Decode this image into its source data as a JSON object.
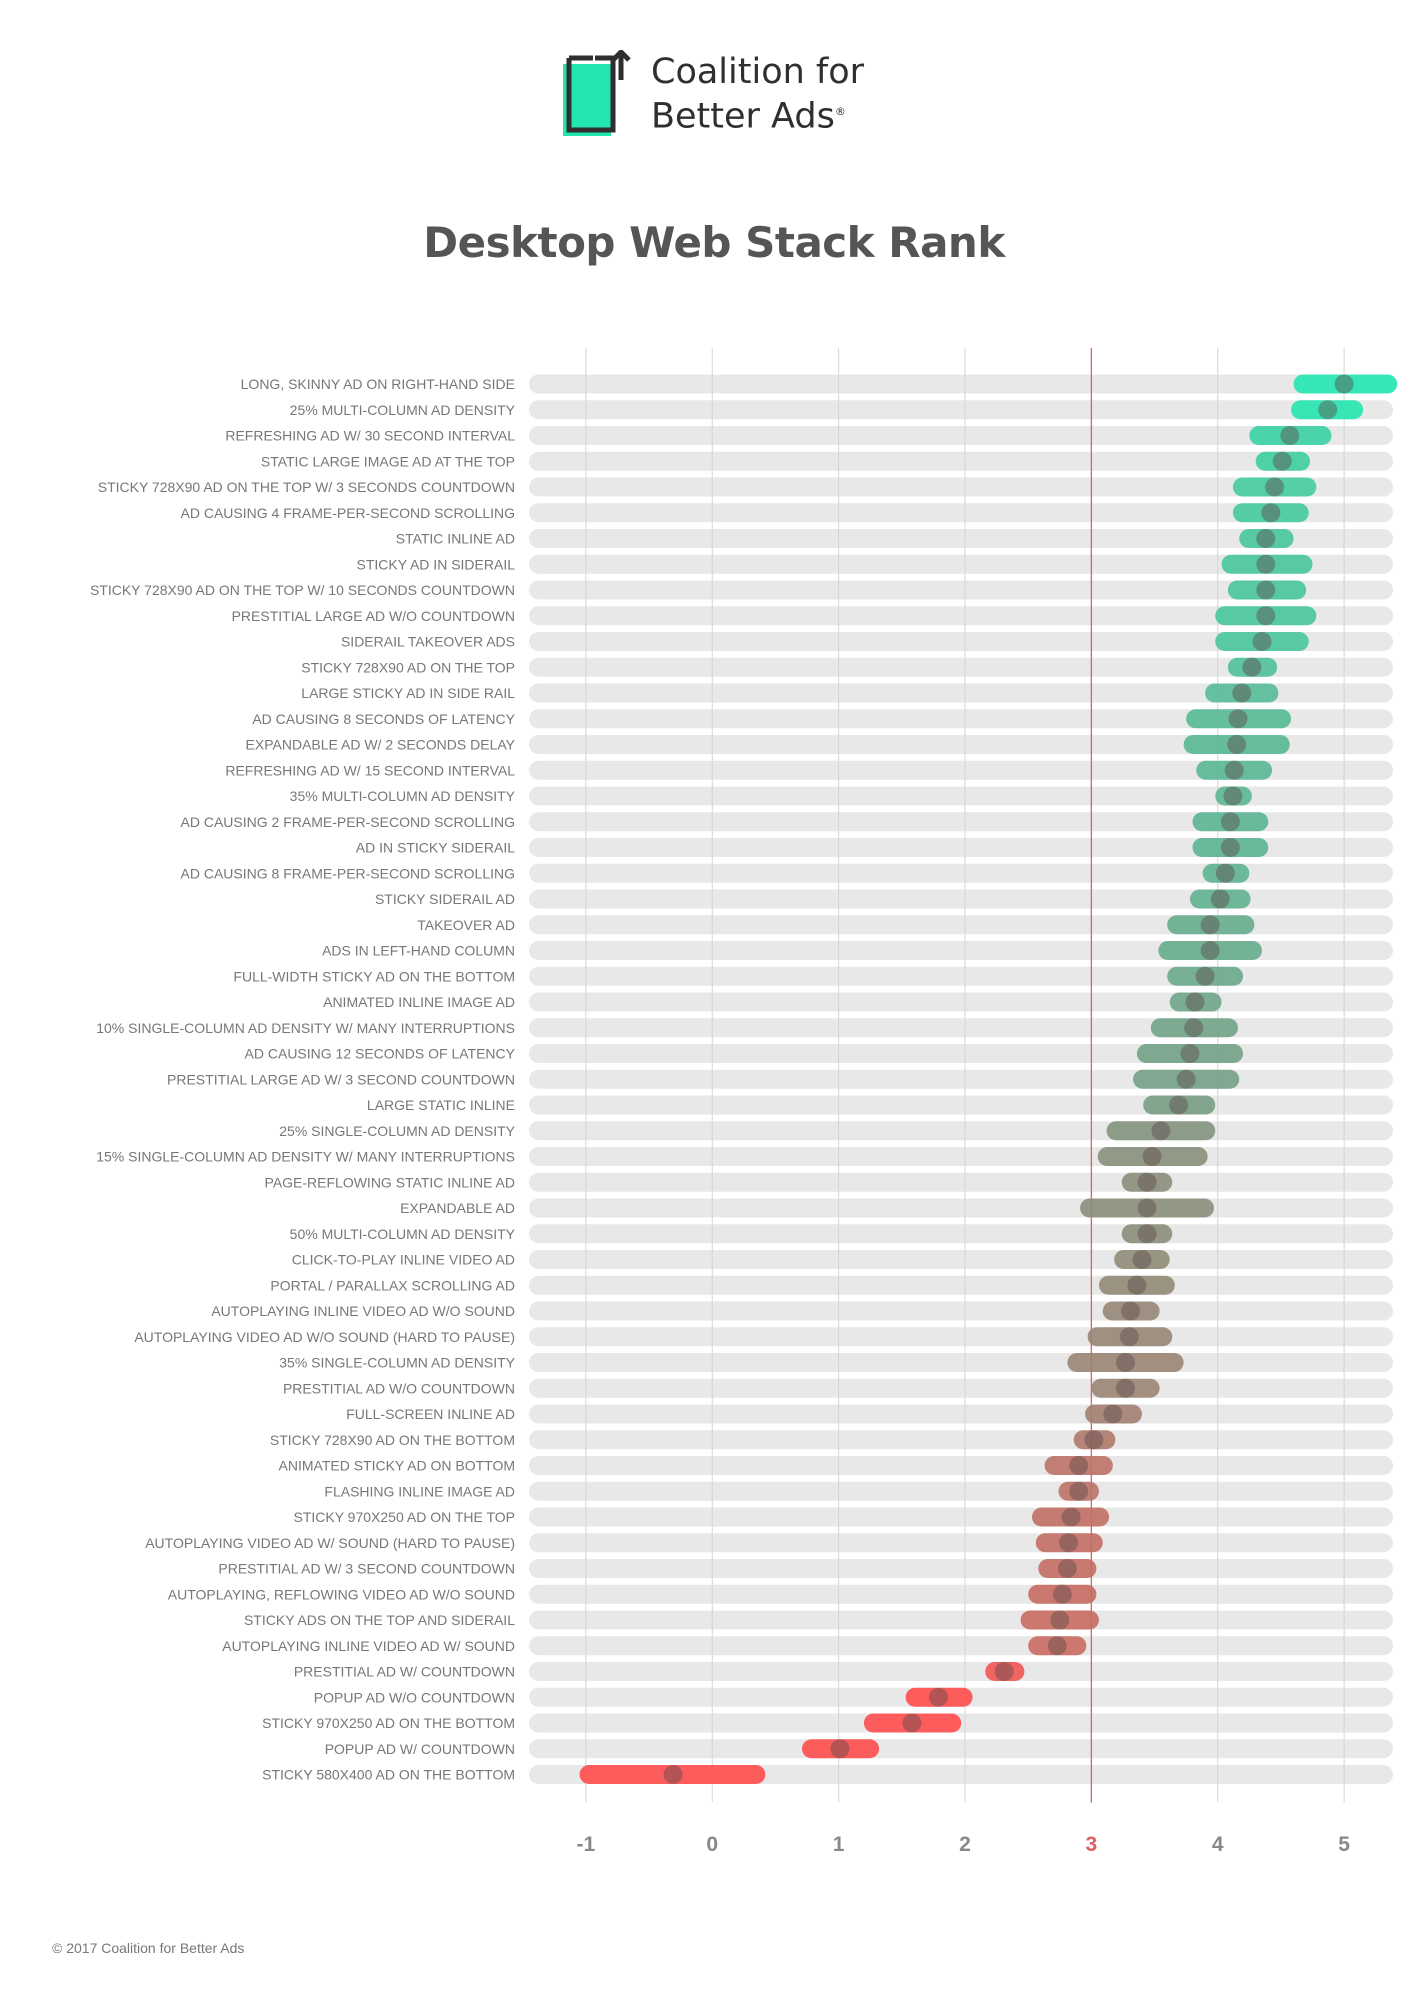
{
  "logo": {
    "line1": "Coalition for",
    "line2": "Better Ads",
    "registered": "®"
  },
  "title": "Desktop Web Stack Rank",
  "footer": "© 2017 Coalition for Better Ads",
  "colors": {
    "high": "#22e6b0",
    "mid": "#8a8e7a",
    "low": "#ff4d4d",
    "track": "#e8e8e8",
    "threshold_line": "#e06060",
    "threshold_tick": "#e06060",
    "tick_text": "#888888",
    "label_text": "#777777"
  },
  "chart_data": {
    "type": "range",
    "title": "Desktop Web Stack Rank",
    "xlim": [
      -1.45,
      5.45
    ],
    "xticks": [
      "-1",
      "0",
      "1",
      "2",
      "3",
      "4",
      "5"
    ],
    "threshold": 3,
    "rows": [
      {
        "label": "LONG, SKINNY AD ON RIGHT-HAND SIDE",
        "low": 4.6,
        "high": 5.42,
        "mean": 5.0
      },
      {
        "label": "25% MULTI-COLUMN AD DENSITY",
        "low": 4.58,
        "high": 5.15,
        "mean": 4.87
      },
      {
        "label": "REFRESHING AD W/ 30 SECOND INTERVAL",
        "low": 4.25,
        "high": 4.9,
        "mean": 4.57
      },
      {
        "label": "STATIC LARGE IMAGE AD AT THE TOP",
        "low": 4.3,
        "high": 4.73,
        "mean": 4.51
      },
      {
        "label": "STICKY 728X90 AD ON THE TOP W/ 3 SECONDS COUNTDOWN",
        "low": 4.12,
        "high": 4.78,
        "mean": 4.45
      },
      {
        "label": "AD CAUSING 4 FRAME-PER-SECOND SCROLLING",
        "low": 4.12,
        "high": 4.72,
        "mean": 4.42
      },
      {
        "label": "STATIC INLINE AD",
        "low": 4.17,
        "high": 4.6,
        "mean": 4.38
      },
      {
        "label": "STICKY AD IN SIDERAIL",
        "low": 4.03,
        "high": 4.75,
        "mean": 4.38
      },
      {
        "label": "STICKY 728X90 AD ON THE TOP W/ 10 SECONDS COUNTDOWN",
        "low": 4.08,
        "high": 4.7,
        "mean": 4.38
      },
      {
        "label": "PRESTITIAL LARGE AD W/O COUNTDOWN",
        "low": 3.98,
        "high": 4.78,
        "mean": 4.38
      },
      {
        "label": "SIDERAIL TAKEOVER ADS",
        "low": 3.98,
        "high": 4.72,
        "mean": 4.35
      },
      {
        "label": "STICKY 728X90 AD ON THE TOP",
        "low": 4.08,
        "high": 4.47,
        "mean": 4.27
      },
      {
        "label": "LARGE STICKY AD IN SIDE RAIL",
        "low": 3.9,
        "high": 4.48,
        "mean": 4.19
      },
      {
        "label": "AD CAUSING 8 SECONDS OF LATENCY",
        "low": 3.75,
        "high": 4.58,
        "mean": 4.16
      },
      {
        "label": "EXPANDABLE AD W/ 2 SECONDS DELAY",
        "low": 3.73,
        "high": 4.57,
        "mean": 4.15
      },
      {
        "label": "REFRESHING AD W/ 15 SECOND INTERVAL",
        "low": 3.83,
        "high": 4.43,
        "mean": 4.13
      },
      {
        "label": "35% MULTI-COLUMN AD DENSITY",
        "low": 3.98,
        "high": 4.27,
        "mean": 4.12
      },
      {
        "label": "AD CAUSING 2 FRAME-PER-SECOND SCROLLING",
        "low": 3.8,
        "high": 4.4,
        "mean": 4.1
      },
      {
        "label": "AD IN STICKY SIDERAIL",
        "low": 3.8,
        "high": 4.4,
        "mean": 4.1
      },
      {
        "label": "AD CAUSING 8 FRAME-PER-SECOND SCROLLING",
        "low": 3.88,
        "high": 4.25,
        "mean": 4.06
      },
      {
        "label": "STICKY SIDERAIL AD",
        "low": 3.78,
        "high": 4.26,
        "mean": 4.02
      },
      {
        "label": "TAKEOVER AD",
        "low": 3.6,
        "high": 4.29,
        "mean": 3.94
      },
      {
        "label": "ADS IN LEFT-HAND COLUMN",
        "low": 3.53,
        "high": 4.35,
        "mean": 3.94
      },
      {
        "label": "FULL-WIDTH STICKY AD ON THE BOTTOM",
        "low": 3.6,
        "high": 4.2,
        "mean": 3.9
      },
      {
        "label": "ANIMATED INLINE IMAGE AD",
        "low": 3.62,
        "high": 4.03,
        "mean": 3.82
      },
      {
        "label": "10% SINGLE-COLUMN AD DENSITY W/ MANY INTERRUPTIONS",
        "low": 3.47,
        "high": 4.16,
        "mean": 3.81
      },
      {
        "label": "AD CAUSING 12 SECONDS OF LATENCY",
        "low": 3.36,
        "high": 4.2,
        "mean": 3.78
      },
      {
        "label": "PRESTITIAL LARGE AD W/ 3 SECOND COUNTDOWN",
        "low": 3.33,
        "high": 4.17,
        "mean": 3.75
      },
      {
        "label": "LARGE STATIC INLINE",
        "low": 3.41,
        "high": 3.98,
        "mean": 3.69
      },
      {
        "label": "25% SINGLE-COLUMN AD DENSITY",
        "low": 3.12,
        "high": 3.98,
        "mean": 3.55
      },
      {
        "label": "15% SINGLE-COLUMN AD DENSITY W/ MANY INTERRUPTIONS",
        "low": 3.05,
        "high": 3.92,
        "mean": 3.48
      },
      {
        "label": "PAGE-REFLOWING STATIC INLINE AD",
        "low": 3.24,
        "high": 3.64,
        "mean": 3.44
      },
      {
        "label": "EXPANDABLE AD",
        "low": 2.91,
        "high": 3.97,
        "mean": 3.44
      },
      {
        "label": "50% MULTI-COLUMN AD DENSITY",
        "low": 3.24,
        "high": 3.64,
        "mean": 3.44
      },
      {
        "label": "CLICK-TO-PLAY INLINE VIDEO AD",
        "low": 3.18,
        "high": 3.62,
        "mean": 3.4
      },
      {
        "label": "PORTAL / PARALLAX SCROLLING AD",
        "low": 3.06,
        "high": 3.66,
        "mean": 3.36
      },
      {
        "label": "AUTOPLAYING INLINE VIDEO AD W/O SOUND",
        "low": 3.09,
        "high": 3.54,
        "mean": 3.31
      },
      {
        "label": "AUTOPLAYING VIDEO AD W/O SOUND (HARD TO PAUSE)",
        "low": 2.97,
        "high": 3.64,
        "mean": 3.3
      },
      {
        "label": "35% SINGLE-COLUMN AD DENSITY",
        "low": 2.81,
        "high": 3.73,
        "mean": 3.27
      },
      {
        "label": "PRESTITIAL AD W/O COUNTDOWN",
        "low": 3.0,
        "high": 3.54,
        "mean": 3.27
      },
      {
        "label": "FULL-SCREEN INLINE AD",
        "low": 2.95,
        "high": 3.4,
        "mean": 3.17
      },
      {
        "label": "STICKY 728X90 AD ON THE BOTTOM",
        "low": 2.86,
        "high": 3.19,
        "mean": 3.02
      },
      {
        "label": "ANIMATED STICKY AD ON BOTTOM",
        "low": 2.63,
        "high": 3.17,
        "mean": 2.9
      },
      {
        "label": "FLASHING INLINE IMAGE AD",
        "low": 2.74,
        "high": 3.06,
        "mean": 2.9
      },
      {
        "label": "STICKY 970X250 AD ON THE TOP",
        "low": 2.53,
        "high": 3.14,
        "mean": 2.84
      },
      {
        "label": "AUTOPLAYING VIDEO AD W/ SOUND (HARD TO PAUSE)",
        "low": 2.56,
        "high": 3.09,
        "mean": 2.82
      },
      {
        "label": "PRESTITIAL AD W/ 3 SECOND COUNTDOWN",
        "low": 2.58,
        "high": 3.04,
        "mean": 2.81
      },
      {
        "label": "AUTOPLAYING, REFLOWING VIDEO AD W/O SOUND",
        "low": 2.5,
        "high": 3.04,
        "mean": 2.77
      },
      {
        "label": "STICKY ADS ON THE TOP AND SIDERAIL",
        "low": 2.44,
        "high": 3.06,
        "mean": 2.75
      },
      {
        "label": "AUTOPLAYING INLINE VIDEO AD W/ SOUND",
        "low": 2.5,
        "high": 2.96,
        "mean": 2.73
      },
      {
        "label": "PRESTITIAL AD W/ COUNTDOWN",
        "low": 2.16,
        "high": 2.47,
        "mean": 2.31
      },
      {
        "label": "POPUP AD W/O COUNTDOWN",
        "low": 1.53,
        "high": 2.06,
        "mean": 1.79
      },
      {
        "label": "STICKY 970X250 AD ON THE BOTTOM",
        "low": 1.2,
        "high": 1.97,
        "mean": 1.58
      },
      {
        "label": "POPUP AD W/ COUNTDOWN",
        "low": 0.71,
        "high": 1.32,
        "mean": 1.01
      },
      {
        "label": "STICKY 580X400 AD ON THE BOTTOM",
        "low": -1.05,
        "high": 0.42,
        "mean": -0.31
      }
    ]
  }
}
